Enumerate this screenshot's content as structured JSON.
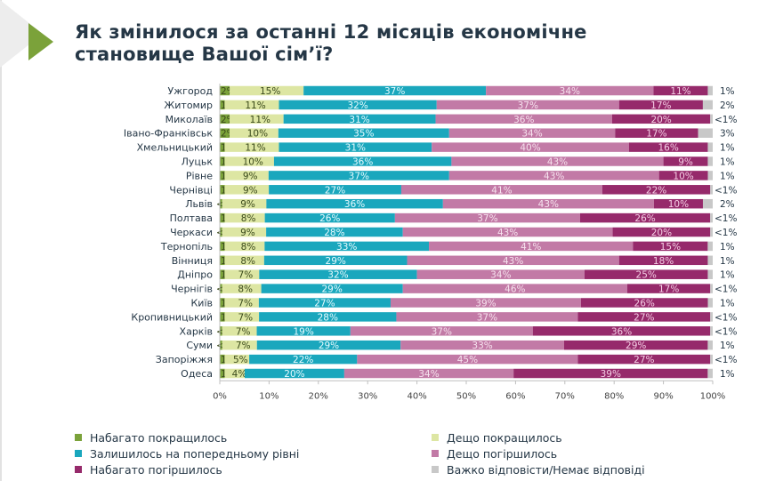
{
  "title_lines": [
    "Як змінилося за останні 12 місяців економічне",
    "становище Вашої сім’ї?"
  ],
  "chart_data": {
    "type": "bar",
    "orientation": "horizontal",
    "stacked": true,
    "percent_stacked": true,
    "title": "Як змінилося за останні 12 місяців економічне становище Вашої сім’ї?",
    "xlabel": "",
    "ylabel": "",
    "xlim": [
      0,
      100
    ],
    "x_ticks": [
      "0%",
      "10%",
      "20%",
      "30%",
      "40%",
      "50%",
      "60%",
      "70%",
      "80%",
      "90%",
      "100%"
    ],
    "legend_position": "bottom",
    "categories": [
      "Ужгород",
      "Житомир",
      "Миколаїв",
      "Івано-Франківськ",
      "Хмельницький",
      "Луцьк",
      "Рівне",
      "Чернівці",
      "Львів",
      "Полтава",
      "Черкаси",
      "Тернопіль",
      "Вінниця",
      "Дніпро",
      "Чернігів",
      "Київ",
      "Кропивницький",
      "Харків",
      "Суми",
      "Запоріжжя",
      "Одеса"
    ],
    "series": [
      {
        "name": "Набагато покращилось",
        "color": "#7ba23a",
        "label_color": "#3b4a1c",
        "values": [
          2,
          1,
          2,
          2,
          1,
          1,
          1,
          1,
          0.5,
          1,
          0.5,
          1,
          1,
          1,
          0.5,
          1,
          1,
          0.5,
          0.5,
          1,
          1
        ],
        "labels": [
          "2%",
          "1%",
          "2%",
          "2%",
          "1%",
          "1%",
          "1%",
          "1%",
          "<1%",
          "1%",
          "<1%",
          "1%",
          "1%",
          "1%",
          "<1%",
          "1%",
          "1%",
          "<1%",
          "<1%",
          "1%",
          "1%"
        ]
      },
      {
        "name": "Дещо покращилось",
        "color": "#dde6a3",
        "label_color": "#3b4a1c",
        "values": [
          15,
          11,
          11,
          10,
          11,
          10,
          9,
          9,
          9,
          8,
          9,
          8,
          8,
          7,
          8,
          7,
          7,
          7,
          7,
          5,
          4
        ],
        "labels": [
          "15%",
          "11%",
          "11%",
          "10%",
          "11%",
          "10%",
          "9%",
          "9%",
          "9%",
          "8%",
          "9%",
          "8%",
          "8%",
          "7%",
          "8%",
          "7%",
          "7%",
          "7%",
          "7%",
          "5%",
          "4%"
        ]
      },
      {
        "name": "Залишилось на попередньому рівні",
        "color": "#1aa7bd",
        "label_color": "#e8fbff",
        "values": [
          37,
          32,
          31,
          35,
          31,
          36,
          37,
          27,
          36,
          26,
          28,
          33,
          29,
          32,
          29,
          27,
          28,
          19,
          29,
          22,
          20
        ],
        "labels": [
          "37%",
          "32%",
          "31%",
          "35%",
          "31%",
          "36%",
          "37%",
          "27%",
          "36%",
          "26%",
          "28%",
          "33%",
          "29%",
          "32%",
          "29%",
          "27%",
          "28%",
          "19%",
          "29%",
          "22%",
          "20%"
        ]
      },
      {
        "name": "Дещо погіршилось",
        "color": "#c27aa6",
        "label_color": "#f6e2ee",
        "values": [
          34,
          37,
          36,
          34,
          40,
          43,
          43,
          41,
          43,
          37,
          43,
          41,
          43,
          34,
          46,
          39,
          37,
          37,
          33,
          45,
          34
        ],
        "labels": [
          "34%",
          "37%",
          "36%",
          "34%",
          "40%",
          "43%",
          "43%",
          "41%",
          "43%",
          "37%",
          "43%",
          "41%",
          "43%",
          "34%",
          "46%",
          "39%",
          "37%",
          "37%",
          "33%",
          "45%",
          "34%"
        ]
      },
      {
        "name": "Набагато погіршилось",
        "color": "#962a6b",
        "label_color": "#f4cde4",
        "values": [
          11,
          17,
          20,
          17,
          16,
          9,
          10,
          22,
          10,
          26,
          20,
          15,
          18,
          25,
          17,
          26,
          27,
          36,
          29,
          27,
          39
        ],
        "labels": [
          "11%",
          "17%",
          "20%",
          "17%",
          "16%",
          "9%",
          "10%",
          "22%",
          "10%",
          "26%",
          "20%",
          "15%",
          "18%",
          "25%",
          "17%",
          "26%",
          "27%",
          "36%",
          "29%",
          "27%",
          "39%"
        ]
      },
      {
        "name": "Важко відповісти/Немає відповіді",
        "color": "#c8c8c8",
        "label_color": "#253746",
        "values": [
          1,
          2,
          0.5,
          3,
          1,
          1,
          1,
          0.5,
          2,
          0.5,
          0.5,
          1,
          1,
          1,
          0.5,
          1,
          0.5,
          0.5,
          1,
          0.5,
          1
        ],
        "labels": [
          "1%",
          "2%",
          "<1%",
          "3%",
          "1%",
          "1%",
          "1%",
          "<1%",
          "2%",
          "<1%",
          "<1%",
          "1%",
          "1%",
          "1%",
          "<1%",
          "1%",
          "<1%",
          "<1%",
          "1%",
          "<1%",
          "1%"
        ]
      }
    ]
  },
  "legend": {
    "left": [
      {
        "label": "Набагато покращилось",
        "color": "#7ba23a"
      },
      {
        "label": "Залишилось на попередньому рівні",
        "color": "#1aa7bd"
      },
      {
        "label": "Набагато погіршилось",
        "color": "#962a6b"
      }
    ],
    "right": [
      {
        "label": "Дещо покращилось",
        "color": "#dde6a3"
      },
      {
        "label": "Дещо погіршилось",
        "color": "#c27aa6"
      },
      {
        "label": "Важко відповісти/Немає відповіді",
        "color": "#c8c8c8"
      }
    ]
  }
}
